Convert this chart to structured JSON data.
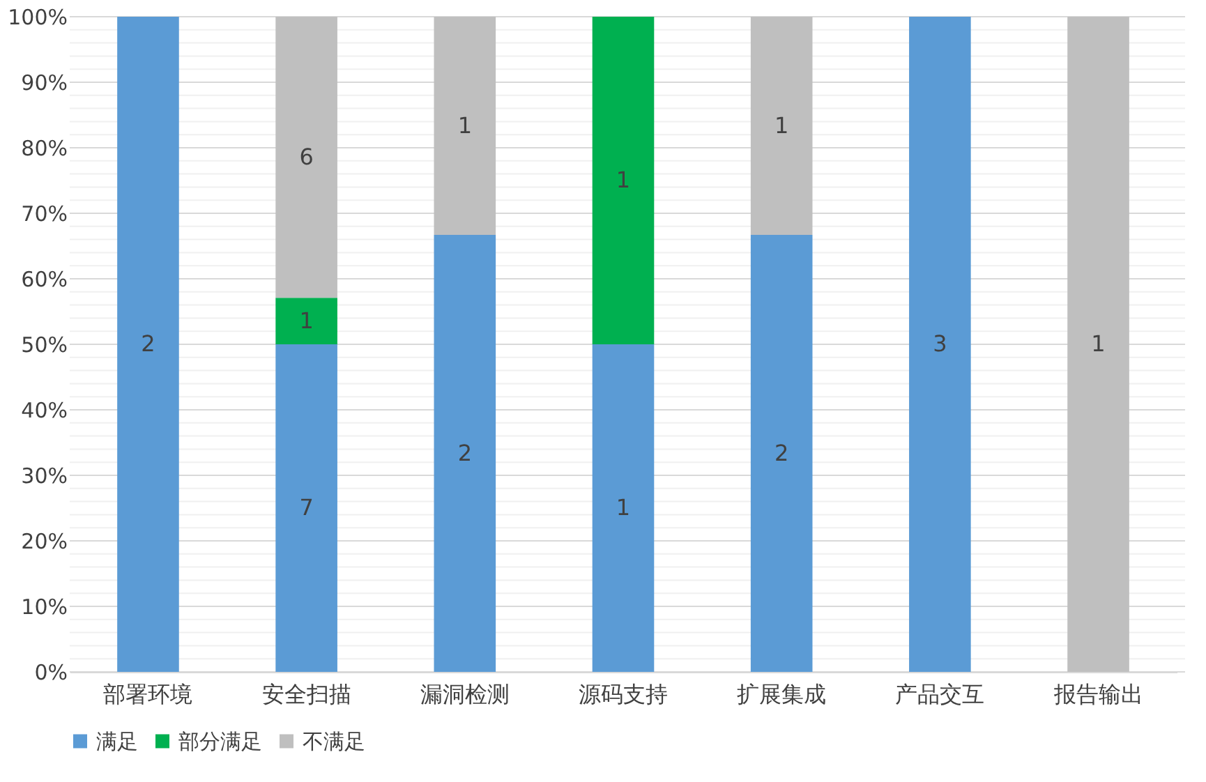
{
  "chart_data": {
    "type": "bar",
    "stacked": true,
    "categories": [
      "部署环境",
      "安全扫描",
      "漏洞检测",
      "源码支持",
      "扩展集成",
      "产品交互",
      "报告输出"
    ],
    "series": [
      {
        "name": "满足",
        "color": "#5b9bd5",
        "values": [
          100,
          50,
          66.7,
          50,
          66.7,
          100,
          0
        ]
      },
      {
        "name": "部分满足",
        "color": "#00b050",
        "values": [
          0,
          7.1,
          0,
          50,
          0,
          0,
          0
        ]
      },
      {
        "name": "不满足",
        "color": "#bfbfbf",
        "values": [
          0,
          42.9,
          33.3,
          0,
          33.3,
          0,
          100
        ]
      }
    ],
    "annotations": [
      "2",
      "7",
      "1",
      "6",
      "2",
      "1",
      "1",
      "1",
      "2",
      "1",
      "3",
      "1"
    ],
    "ylim": [
      0,
      100
    ],
    "yticks": [
      {
        "value": 0,
        "label": "0%"
      },
      {
        "value": 2,
        "label": null
      },
      {
        "value": 4,
        "label": null
      },
      {
        "value": 6,
        "label": null
      },
      {
        "value": 8,
        "label": null
      },
      {
        "value": 10,
        "label": "10%"
      },
      {
        "value": 12,
        "label": null
      },
      {
        "value": 14,
        "label": null
      },
      {
        "value": 16,
        "label": null
      },
      {
        "value": 18,
        "label": null
      },
      {
        "value": 20,
        "label": "20%"
      },
      {
        "value": 22,
        "label": null
      },
      {
        "value": 24,
        "label": null
      },
      {
        "value": 26,
        "label": null
      },
      {
        "value": 28,
        "label": null
      },
      {
        "value": 30,
        "label": "30%"
      },
      {
        "value": 32,
        "label": null
      },
      {
        "value": 34,
        "label": null
      },
      {
        "value": 36,
        "label": null
      },
      {
        "value": 38,
        "label": null
      },
      {
        "value": 40,
        "label": "40%"
      },
      {
        "value": 42,
        "label": null
      },
      {
        "value": 44,
        "label": null
      },
      {
        "value": 46,
        "label": null
      },
      {
        "value": 48,
        "label": null
      },
      {
        "value": 50,
        "label": "50%"
      },
      {
        "value": 52,
        "label": null
      },
      {
        "value": 54,
        "label": null
      },
      {
        "value": 56,
        "label": null
      },
      {
        "value": 58,
        "label": null
      },
      {
        "value": 60,
        "label": "60%"
      },
      {
        "value": 62,
        "label": null
      },
      {
        "value": 64,
        "label": null
      },
      {
        "value": 66,
        "label": null
      },
      {
        "value": 68,
        "label": null
      },
      {
        "value": 70,
        "label": "70%"
      },
      {
        "value": 72,
        "label": null
      },
      {
        "value": 74,
        "label": null
      },
      {
        "value": 76,
        "label": null
      },
      {
        "value": 78,
        "label": null
      },
      {
        "value": 80,
        "label": "80%"
      },
      {
        "value": 82,
        "label": null
      },
      {
        "value": 84,
        "label": null
      },
      {
        "value": 86,
        "label": null
      },
      {
        "value": 88,
        "label": null
      },
      {
        "value": 90,
        "label": "90%"
      },
      {
        "value": 92,
        "label": null
      },
      {
        "value": 94,
        "label": null
      },
      {
        "value": 96,
        "label": null
      },
      {
        "value": 98,
        "label": null
      },
      {
        "value": 100,
        "label": "100%"
      }
    ],
    "grid": "y",
    "legend": "bottom"
  }
}
